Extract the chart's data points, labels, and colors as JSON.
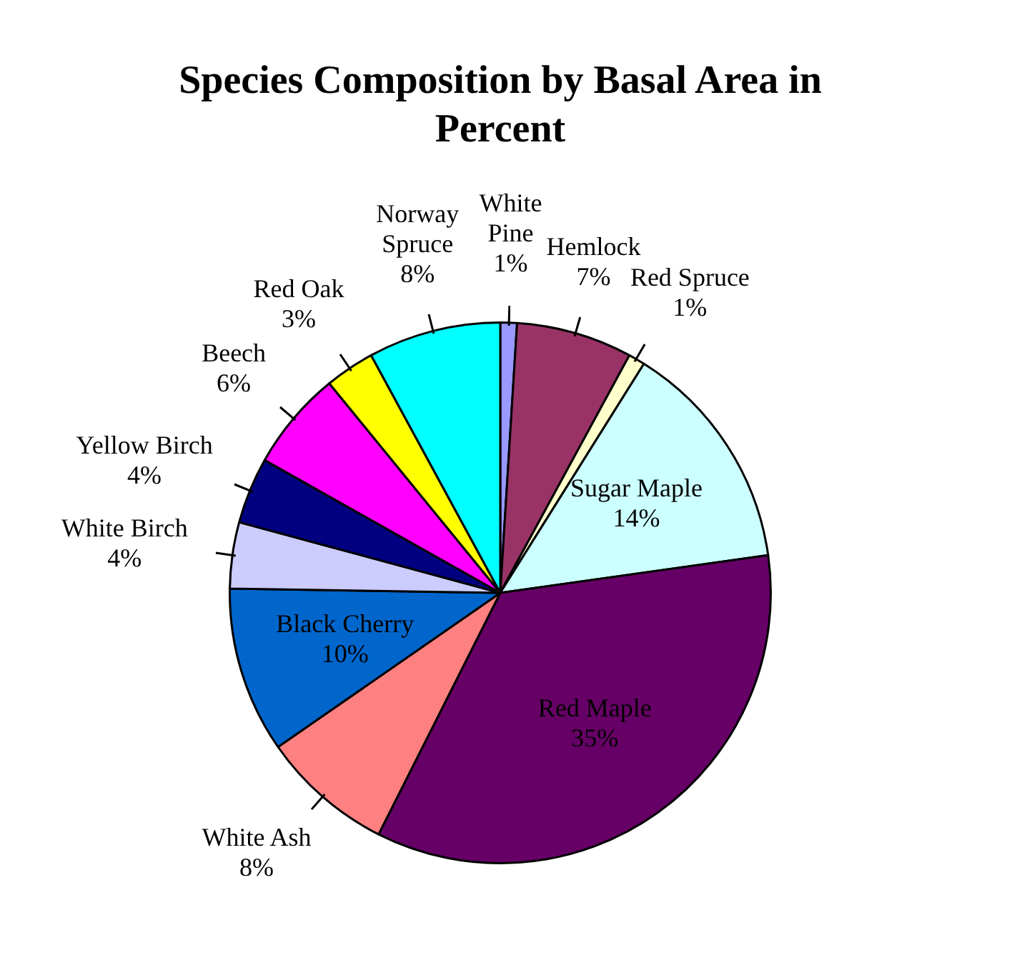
{
  "chart_data": {
    "type": "pie",
    "title": "Species Composition by Basal Area in Percent",
    "categories": [
      "White Pine",
      "Hemlock",
      "Red Spruce",
      "Sugar Maple",
      "Red Maple",
      "White Ash",
      "Black Cherry",
      "White Birch",
      "Yellow Birch",
      "Beech",
      "Red Oak",
      "Norway Spruce"
    ],
    "values": [
      1,
      7,
      1,
      14,
      35,
      8,
      10,
      4,
      4,
      6,
      3,
      8
    ],
    "colors": [
      "#9999ff",
      "#993366",
      "#ffffcc",
      "#ccffff",
      "#660066",
      "#ff8080",
      "#0066cc",
      "#ccccff",
      "#000080",
      "#ff00ff",
      "#ffff00",
      "#00ffff"
    ],
    "value_labels": [
      "1%",
      "7%",
      "1%",
      "14%",
      "35%",
      "8%",
      "10%",
      "4%",
      "4%",
      "6%",
      "3%",
      "8%"
    ],
    "legend": false
  }
}
